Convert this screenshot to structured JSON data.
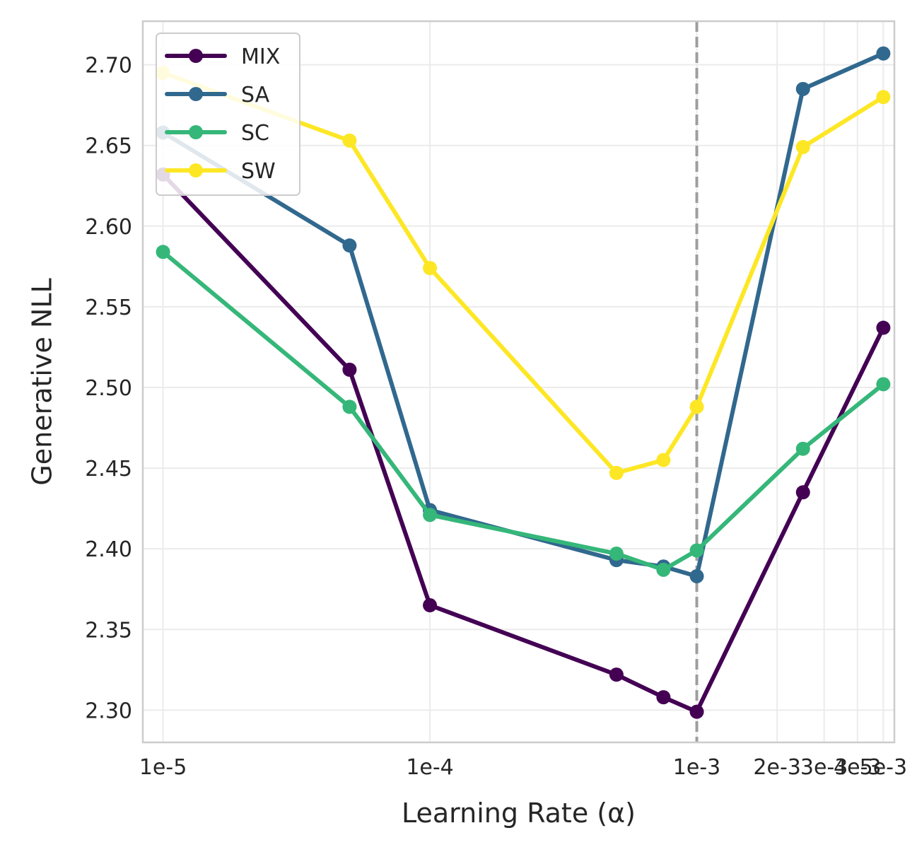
{
  "chart_data": {
    "type": "line",
    "xscale": "log",
    "xlabel": "Learning Rate (α)",
    "ylabel": "Generative NLL",
    "ylim": [
      2.28,
      2.727
    ],
    "xlim": [
      8.4e-06,
      0.0055
    ],
    "x_ticks": [
      {
        "value": 1e-05,
        "label": "1e-5"
      },
      {
        "value": 0.0001,
        "label": "1e-4"
      },
      {
        "value": 0.001,
        "label": "1e-3"
      },
      {
        "value": 0.002,
        "label": "2e-3"
      },
      {
        "value": 0.003,
        "label": "3e-3"
      },
      {
        "value": 0.004,
        "label": "4e-3"
      },
      {
        "value": 0.005,
        "label": "5e-3"
      }
    ],
    "y_ticks": [
      {
        "value": 2.3,
        "label": "2.30"
      },
      {
        "value": 2.35,
        "label": "2.35"
      },
      {
        "value": 2.4,
        "label": "2.40"
      },
      {
        "value": 2.45,
        "label": "2.45"
      },
      {
        "value": 2.5,
        "label": "2.50"
      },
      {
        "value": 2.55,
        "label": "2.55"
      },
      {
        "value": 2.6,
        "label": "2.60"
      },
      {
        "value": 2.65,
        "label": "2.65"
      },
      {
        "value": 2.7,
        "label": "2.70"
      }
    ],
    "vline": {
      "x": 0.001,
      "color": "#9e9e9e",
      "style": "dashed"
    },
    "grid": true,
    "legend_position": "top-left",
    "series": [
      {
        "name": "MIX",
        "color": "#440154",
        "x": [
          1e-05,
          5e-05,
          0.0001,
          0.0005,
          0.00075,
          0.001,
          0.0025,
          0.005
        ],
        "values": [
          2.632,
          2.511,
          2.365,
          2.322,
          2.308,
          2.299,
          2.435,
          2.537
        ]
      },
      {
        "name": "SA",
        "color": "#31688e",
        "x": [
          1e-05,
          5e-05,
          0.0001,
          0.0005,
          0.00075,
          0.001,
          0.0025,
          0.005
        ],
        "values": [
          2.658,
          2.588,
          2.424,
          2.393,
          2.389,
          2.383,
          2.685,
          2.707
        ]
      },
      {
        "name": "SC",
        "color": "#35b779",
        "x": [
          1e-05,
          5e-05,
          0.0001,
          0.0005,
          0.00075,
          0.001,
          0.0025,
          0.005
        ],
        "values": [
          2.584,
          2.488,
          2.421,
          2.397,
          2.387,
          2.399,
          2.462,
          2.502
        ]
      },
      {
        "name": "SW",
        "color": "#fde725",
        "x": [
          1e-05,
          5e-05,
          0.0001,
          0.0005,
          0.00075,
          0.001,
          0.0025,
          0.005
        ],
        "values": [
          2.695,
          2.653,
          2.574,
          2.447,
          2.455,
          2.488,
          2.649,
          2.68
        ]
      }
    ]
  }
}
